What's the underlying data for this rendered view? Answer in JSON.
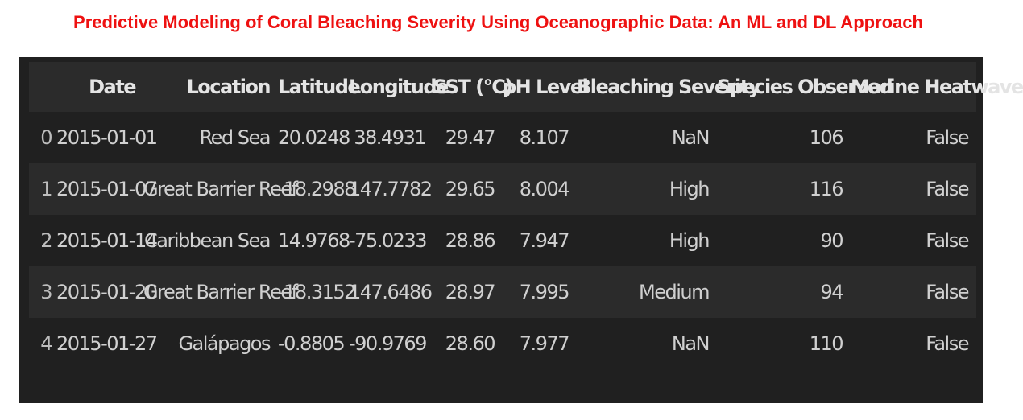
{
  "title": "Predictive Modeling of Coral Bleaching Severity Using Oceanographic Data: An ML and DL Approach",
  "table": {
    "index_header": "",
    "columns": [
      "Date",
      "Location",
      "Latitude",
      "Longitude",
      "SST (°C)",
      "pH Level",
      "Bleaching Severity",
      "Species Observed",
      "Marine Heatwave"
    ],
    "rows": [
      {
        "index": "0",
        "cells": [
          "2015-01-01",
          "Red Sea",
          "20.0248",
          "38.4931",
          "29.47",
          "8.107",
          "NaN",
          "106",
          "False"
        ]
      },
      {
        "index": "1",
        "cells": [
          "2015-01-07",
          "Great Barrier Reef",
          "-18.2988",
          "147.7782",
          "29.65",
          "8.004",
          "High",
          "116",
          "False"
        ]
      },
      {
        "index": "2",
        "cells": [
          "2015-01-14",
          "Caribbean Sea",
          "14.9768",
          "-75.0233",
          "28.86",
          "7.947",
          "High",
          "90",
          "False"
        ]
      },
      {
        "index": "3",
        "cells": [
          "2015-01-20",
          "Great Barrier Reef",
          "-18.3152",
          "147.6486",
          "28.97",
          "7.995",
          "Medium",
          "94",
          "False"
        ]
      },
      {
        "index": "4",
        "cells": [
          "2015-01-27",
          "Galápagos",
          "-0.8805",
          "-90.9769",
          "28.60",
          "7.977",
          "NaN",
          "110",
          "False"
        ]
      }
    ]
  },
  "colors": {
    "title": "#ee1111",
    "panel_background": "#202020",
    "header_background": "#2b2b2b",
    "text": "#d0d0d0"
  }
}
